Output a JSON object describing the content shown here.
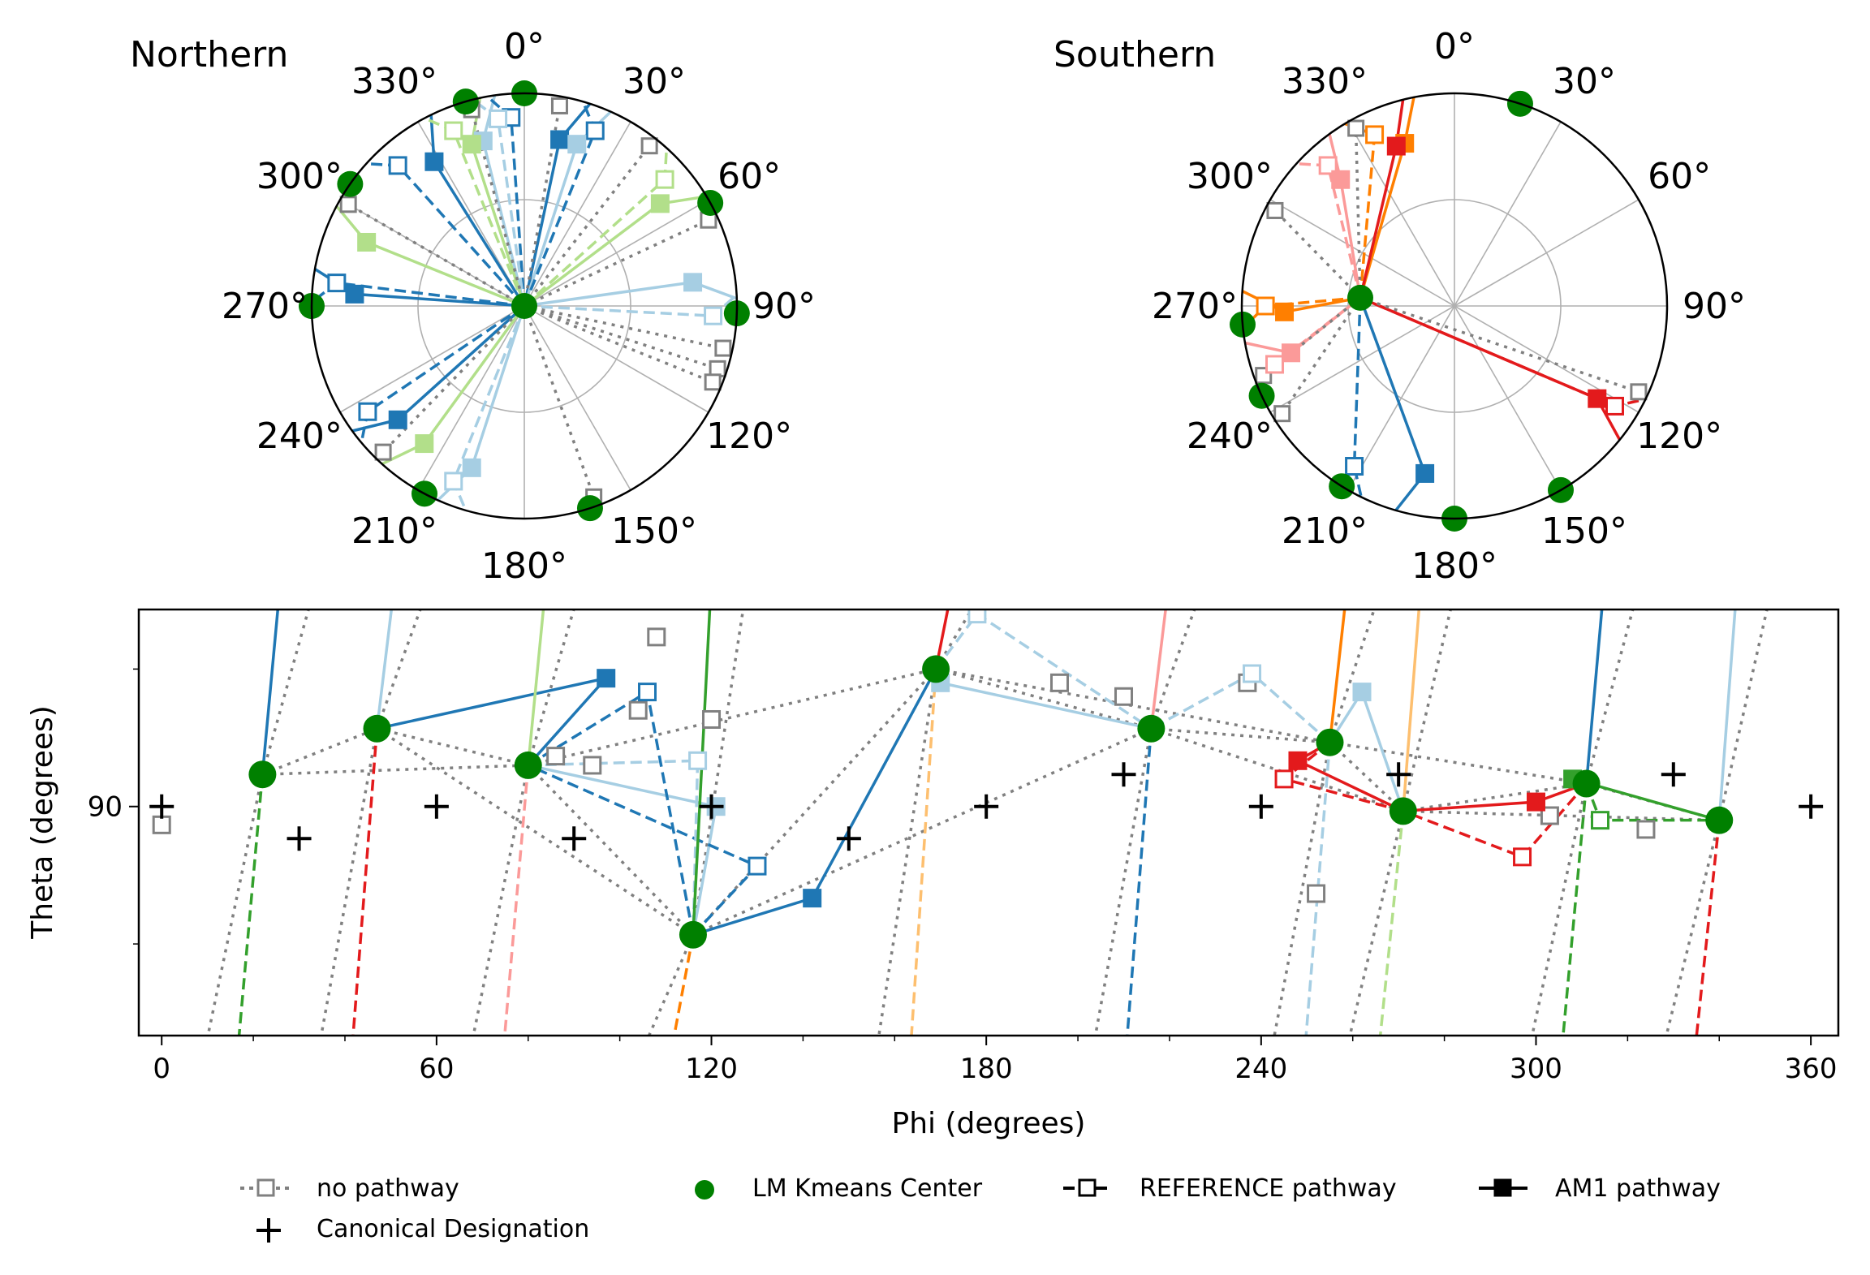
{
  "chart_data": [
    {
      "type": "polar",
      "title": "Northern",
      "angle_labels": [
        "0°",
        "30°",
        "60°",
        "90°",
        "120°",
        "150°",
        "180°",
        "210°",
        "240°",
        "270°",
        "300°",
        "330°"
      ],
      "center": {
        "phi": 0,
        "theta": 0
      },
      "kmeans_centers_phi": [
        0,
        61,
        92,
        162,
        208,
        270,
        305,
        344
      ],
      "am1_pathway_points": [
        {
          "phi": 12,
          "color": "#1f77b4"
        },
        {
          "phi": 328,
          "color": "#1f77b4"
        },
        {
          "phi": 274,
          "color": "#1f77b4"
        },
        {
          "phi": 228,
          "color": "#1f77b4"
        },
        {
          "phi": 346,
          "color": "#a6cee3"
        },
        {
          "phi": 18,
          "color": "#a6cee3"
        },
        {
          "phi": 82,
          "color": "#a6cee3"
        },
        {
          "phi": 198,
          "color": "#a6cee3"
        },
        {
          "phi": 342,
          "color": "#b2df8a"
        },
        {
          "phi": 53,
          "color": "#b2df8a"
        },
        {
          "phi": 292,
          "color": "#b2df8a"
        },
        {
          "phi": 216,
          "color": "#b2df8a"
        }
      ],
      "reference_pathway_points": [
        {
          "phi": 356,
          "color": "#1f77b4"
        },
        {
          "phi": 22,
          "color": "#1f77b4"
        },
        {
          "phi": 318,
          "color": "#1f77b4"
        },
        {
          "phi": 277,
          "color": "#1f77b4"
        },
        {
          "phi": 236,
          "color": "#1f77b4"
        },
        {
          "phi": 352,
          "color": "#a6cee3"
        },
        {
          "phi": 93,
          "color": "#a6cee3"
        },
        {
          "phi": 202,
          "color": "#a6cee3"
        },
        {
          "phi": 338,
          "color": "#b2df8a"
        },
        {
          "phi": 48,
          "color": "#b2df8a"
        }
      ],
      "no_pathway_points_phi": [
        10,
        38,
        65,
        102,
        108,
        112,
        160,
        224,
        300,
        345
      ]
    },
    {
      "type": "polar",
      "title": "Southern",
      "angle_labels": [
        "0°",
        "30°",
        "60°",
        "90°",
        "120°",
        "150°",
        "180°",
        "210°",
        "240°",
        "270°",
        "300°",
        "330°"
      ],
      "center": {
        "phi": 275,
        "theta": 40
      },
      "kmeans_centers_phi": [
        18,
        150,
        245,
        265,
        180,
        212
      ],
      "am1_pathway_points": [
        {
          "phi": 343,
          "color": "#ff7f00"
        },
        {
          "phi": 268,
          "color": "#ff7f00"
        },
        {
          "phi": 340,
          "color": "#e31a1c"
        },
        {
          "phi": 123,
          "color": "#e31a1c"
        },
        {
          "phi": 318,
          "color": "#fb9a99"
        },
        {
          "phi": 254,
          "color": "#fb9a99"
        },
        {
          "phi": 190,
          "color": "#1f77b4"
        }
      ],
      "reference_pathway_points": [
        {
          "phi": 335,
          "color": "#ff7f00"
        },
        {
          "phi": 270,
          "color": "#ff7f00"
        },
        {
          "phi": 122,
          "color": "#e31a1c"
        },
        {
          "phi": 318,
          "color": "#fb9a99"
        },
        {
          "phi": 252,
          "color": "#fb9a99"
        },
        {
          "phi": 212,
          "color": "#1f77b4"
        }
      ],
      "no_pathway_points_phi": [
        298,
        250,
        238,
        115,
        331
      ]
    },
    {
      "type": "scatter",
      "xlabel": "Phi (degrees)",
      "ylabel": "Theta (degrees)",
      "xlim": [
        -5,
        366
      ],
      "ylim": [
        140,
        47
      ],
      "xticks": [
        0,
        60,
        120,
        180,
        240,
        300,
        360
      ],
      "yticks": [
        90
      ],
      "kmeans_centers": [
        {
          "x": 22,
          "y": 83
        },
        {
          "x": 47,
          "y": 73
        },
        {
          "x": 80,
          "y": 81
        },
        {
          "x": 116,
          "y": 118
        },
        {
          "x": 169,
          "y": 60
        },
        {
          "x": 216,
          "y": 73
        },
        {
          "x": 255,
          "y": 76
        },
        {
          "x": 271,
          "y": 91
        },
        {
          "x": 311,
          "y": 85
        },
        {
          "x": 340,
          "y": 93
        }
      ],
      "canonical_designations": [
        {
          "x": 0,
          "y": 90
        },
        {
          "x": 30,
          "y": 97
        },
        {
          "x": 60,
          "y": 90
        },
        {
          "x": 90,
          "y": 97
        },
        {
          "x": 120,
          "y": 90
        },
        {
          "x": 150,
          "y": 97
        },
        {
          "x": 180,
          "y": 90
        },
        {
          "x": 210,
          "y": 83
        },
        {
          "x": 240,
          "y": 90
        },
        {
          "x": 270,
          "y": 83
        },
        {
          "x": 330,
          "y": 83
        },
        {
          "x": 360,
          "y": 90
        }
      ],
      "am1_pathway_markers": [
        {
          "x": 97,
          "y": 62,
          "color": "#1f77b4"
        },
        {
          "x": 142,
          "y": 110,
          "color": "#1f77b4"
        },
        {
          "x": 121,
          "y": 90,
          "color": "#a6cee3"
        },
        {
          "x": 170,
          "y": 63,
          "color": "#a6cee3"
        },
        {
          "x": 262,
          "y": 65,
          "color": "#a6cee3"
        },
        {
          "x": 248,
          "y": 80,
          "color": "#e31a1c"
        },
        {
          "x": 300,
          "y": 89,
          "color": "#e31a1c"
        },
        {
          "x": 308,
          "y": 84,
          "color": "#33a02c"
        }
      ],
      "reference_pathway_markers": [
        {
          "x": 106,
          "y": 65,
          "color": "#1f77b4"
        },
        {
          "x": 130,
          "y": 103,
          "color": "#1f77b4"
        },
        {
          "x": 117,
          "y": 80,
          "color": "#a6cee3"
        },
        {
          "x": 178,
          "y": 48,
          "color": "#a6cee3"
        },
        {
          "x": 238,
          "y": 61,
          "color": "#a6cee3"
        },
        {
          "x": 245,
          "y": 84,
          "color": "#e31a1c"
        },
        {
          "x": 297,
          "y": 101,
          "color": "#e31a1c"
        },
        {
          "x": 314,
          "y": 93,
          "color": "#33a02c"
        }
      ],
      "no_pathway_markers": [
        {
          "x": 0,
          "y": 94
        },
        {
          "x": 86,
          "y": 79
        },
        {
          "x": 94,
          "y": 81
        },
        {
          "x": 108,
          "y": 53
        },
        {
          "x": 104,
          "y": 69
        },
        {
          "x": 120,
          "y": 71
        },
        {
          "x": 196,
          "y": 63
        },
        {
          "x": 210,
          "y": 66
        },
        {
          "x": 237,
          "y": 63
        },
        {
          "x": 252,
          "y": 109
        },
        {
          "x": 303,
          "y": 92
        },
        {
          "x": 324,
          "y": 95
        }
      ]
    }
  ],
  "legend": {
    "no_pathway": "no pathway",
    "kmeans": "LM Kmeans Center",
    "reference": "REFERENCE pathway",
    "am1": "AM1 pathway",
    "canonical": "Canonical Designation"
  },
  "colors": {
    "kmeans": "#008000",
    "no_pathway": "#808080",
    "grid": "#b0b0b0"
  }
}
